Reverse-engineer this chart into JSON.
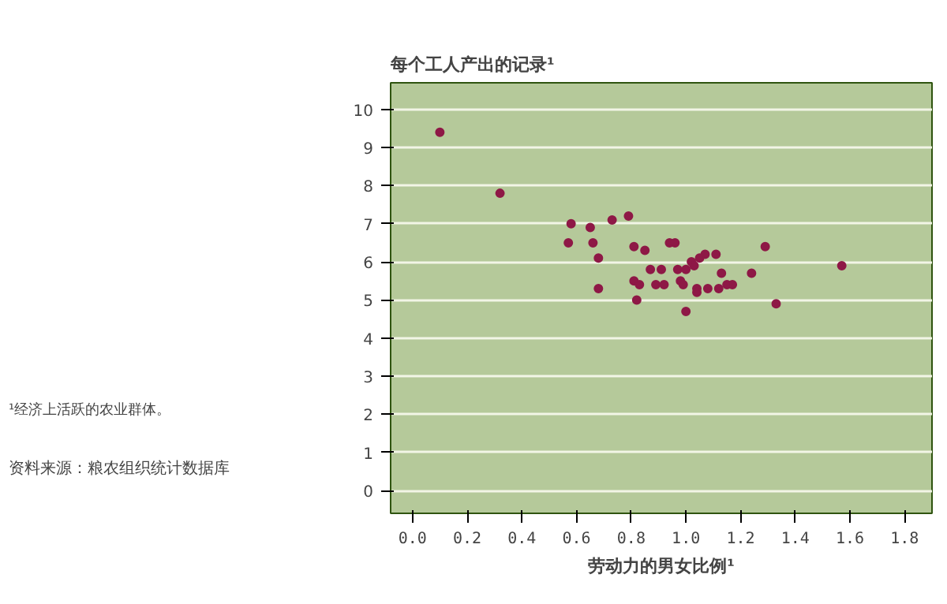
{
  "chart_data": {
    "type": "scatter",
    "title": "每个工人产出的记录¹",
    "xlabel": "劳动力的男女比例¹",
    "annotations": [
      "¹经济上活跃的农业群体。",
      "资料来源：粮农组织统计数据库"
    ],
    "x": [
      0.1,
      0.32,
      0.58,
      0.65,
      0.73,
      0.79,
      0.57,
      0.66,
      0.68,
      0.81,
      0.85,
      0.94,
      0.96,
      1.29,
      1.11,
      1.07,
      1.05,
      1.02,
      1.03,
      0.87,
      0.91,
      0.97,
      1.0,
      1.13,
      1.24,
      0.68,
      0.81,
      0.83,
      0.89,
      0.92,
      0.98,
      0.99,
      1.04,
      1.04,
      1.08,
      1.12,
      1.15,
      1.17,
      0.82,
      1.0,
      1.33,
      1.57
    ],
    "series": [
      {
        "color": "#8e1846",
        "values": [
          9.4,
          7.8,
          7.0,
          6.9,
          7.1,
          7.2,
          6.5,
          6.5,
          6.1,
          6.4,
          6.3,
          6.5,
          6.5,
          6.4,
          6.2,
          6.2,
          6.1,
          6.0,
          5.9,
          5.8,
          5.8,
          5.8,
          5.8,
          5.7,
          5.7,
          5.3,
          5.5,
          5.4,
          5.4,
          5.4,
          5.5,
          5.4,
          5.3,
          5.2,
          5.3,
          5.3,
          5.4,
          5.4,
          5.0,
          4.7,
          4.9,
          5.9
        ]
      }
    ],
    "marker": "circle",
    "grid": "y",
    "xlim": [
      -0.08,
      1.9
    ],
    "ylim": [
      -0.6,
      10.7
    ],
    "xticks": [
      {
        "value": 0,
        "label": "0.0"
      },
      0.2,
      0.4,
      0.6,
      0.8,
      {
        "value": 1,
        "label": "1.0"
      },
      1.2,
      1.4,
      1.6,
      1.8
    ],
    "yticks": [
      0,
      1,
      2,
      3,
      4,
      5,
      6,
      7,
      8,
      9,
      10
    ]
  }
}
